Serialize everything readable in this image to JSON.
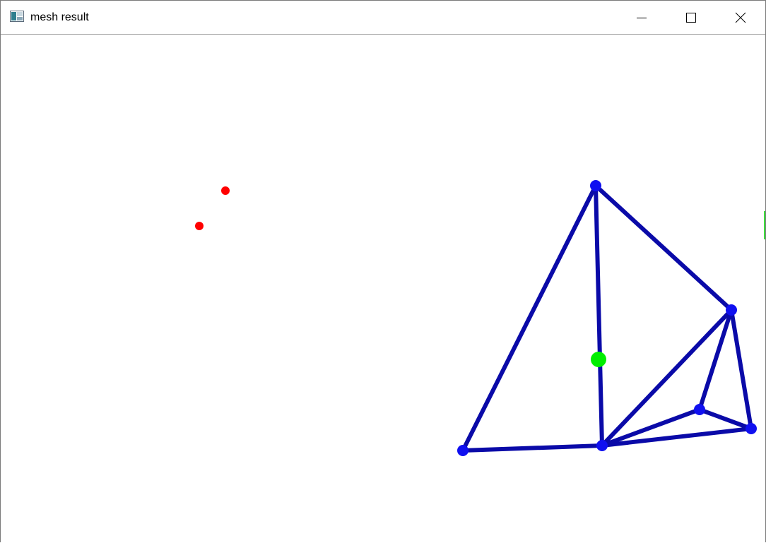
{
  "window": {
    "title": "mesh result",
    "icon": "opencv-window-icon"
  },
  "controls": {
    "minimize": "minimize-icon",
    "maximize": "maximize-icon",
    "close": "close-icon"
  },
  "colors": {
    "mesh_edge": "#0a0aa8",
    "mesh_vertex": "#1010f0",
    "query_point": "#00ee00",
    "outlier_point": "#ff0000",
    "background": "#ffffff"
  }
}
